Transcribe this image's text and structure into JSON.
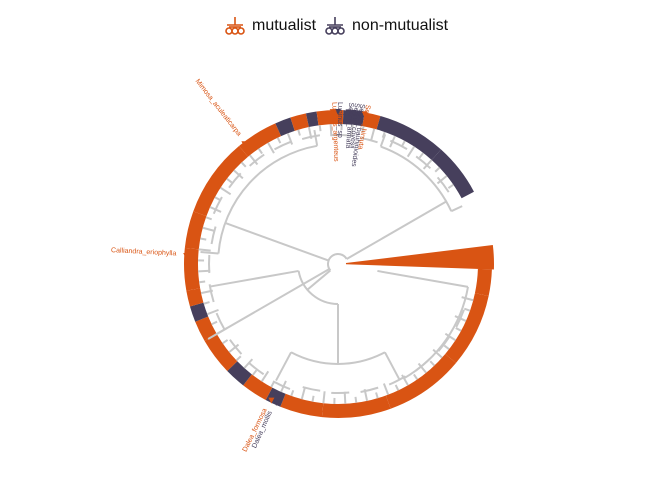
{
  "legend": {
    "items": [
      {
        "label": "mutualist",
        "color": "#D95413"
      },
      {
        "label": "non-mutualist",
        "color": "#463F5C"
      }
    ]
  },
  "colors": {
    "mutualist": "#D95413",
    "non_mutualist": "#463F5C",
    "branch": "#C8C8C8"
  },
  "tree": {
    "type": "circular-phylogeny",
    "tip_labels": [
      {
        "text": "Mimosa_aculeaticarpa",
        "status": "mutualist"
      },
      {
        "text": "Calliandra_eriophylla",
        "status": "mutualist"
      },
      {
        "text": "Dalea_formosa",
        "status": "mutualist"
      },
      {
        "text": "Dalea_mollis",
        "status": "non-mutualist"
      },
      {
        "text": "Lupinus_argenteus",
        "status": "mutualist"
      },
      {
        "text": "Lupinus_sp",
        "status": "non-mutualist"
      },
      {
        "text": "Senna_armata",
        "status": "non-mutualist"
      },
      {
        "text": "Senna_covesii",
        "status": "non-mutualist"
      },
      {
        "text": "Senna_bauhinioides",
        "status": "non-mutualist"
      },
      {
        "text": "Senna_hirsuta",
        "status": "mutualist"
      }
    ]
  }
}
